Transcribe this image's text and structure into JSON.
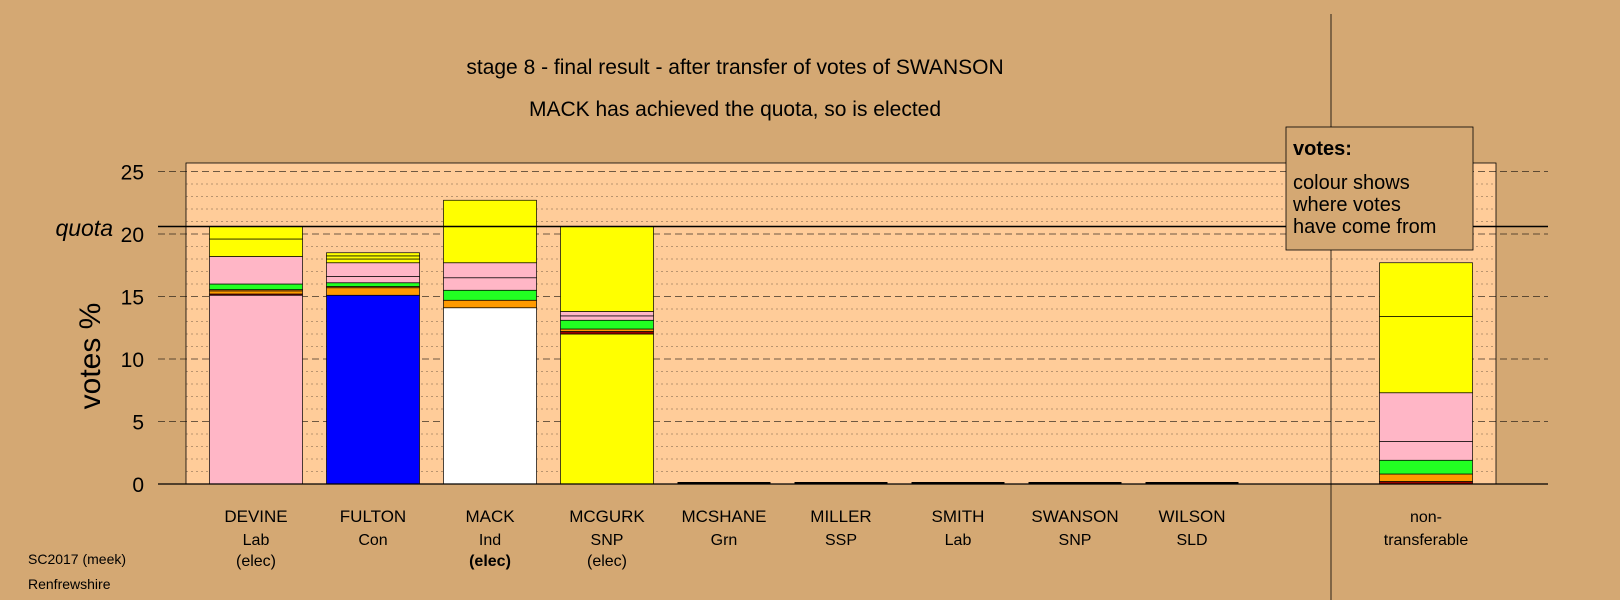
{
  "footer": {
    "line1": "SC2017 (meek)",
    "line2": "Renfrewshire"
  },
  "legend_box": {
    "heading": "votes:",
    "lines": [
      "colour shows",
      "where votes",
      "have come from"
    ]
  },
  "colors": {
    "background": "#D4A873",
    "plot_background": "#FFCC99",
    "Lab": "#FFB6C6",
    "Con": "#0000FF",
    "Ind": "#FFFFFF",
    "SNP": "#FFFF00",
    "Grn": "#22FF22",
    "SSP": "#FF8800",
    "SLD": "#FF9A00",
    "SLD_dark": "#990000"
  },
  "chart_data": {
    "type": "bar",
    "stacked": true,
    "title": "stage 8 - final result - after transfer of votes of SWANSON",
    "subtitle": "MACK has achieved the quota, so is elected",
    "xlabel": "",
    "ylabel": "votes %",
    "ylim": [
      0,
      25
    ],
    "yticks": [
      0,
      5,
      10,
      15,
      20,
      25
    ],
    "quota": 20.6,
    "quota_label": "quota",
    "grid": true,
    "categories": [
      {
        "name": "DEVINE",
        "party": "Lab",
        "status": "(elec)",
        "status_bold": false
      },
      {
        "name": "FULTON",
        "party": "Con",
        "status": "",
        "status_bold": false
      },
      {
        "name": "MACK",
        "party": "Ind",
        "status": "(elec)",
        "status_bold": true
      },
      {
        "name": "MCGURK",
        "party": "SNP",
        "status": "(elec)",
        "status_bold": false
      },
      {
        "name": "MCSHANE",
        "party": "Grn",
        "status": "",
        "status_bold": false
      },
      {
        "name": "MILLER",
        "party": "SSP",
        "status": "",
        "status_bold": false
      },
      {
        "name": "SMITH",
        "party": "Lab",
        "status": "",
        "status_bold": false
      },
      {
        "name": "SWANSON",
        "party": "SNP",
        "status": "",
        "status_bold": false
      },
      {
        "name": "WILSON",
        "party": "SLD",
        "status": "",
        "status_bold": false
      }
    ],
    "nontransferable_label": [
      "non-",
      "transferable"
    ],
    "bars": [
      {
        "segments": [
          {
            "from": "Lab",
            "value": 15.1
          },
          {
            "from": "SLD_dark",
            "value": 0.1
          },
          {
            "from": "SLD",
            "value": 0.25
          },
          {
            "from": "SSP",
            "value": 0.1
          },
          {
            "from": "Grn",
            "value": 0.45
          },
          {
            "from": "Lab",
            "value": 2.2
          },
          {
            "from": "SNP",
            "value": 1.4
          },
          {
            "from": "SNP",
            "value": 1.0
          }
        ]
      },
      {
        "segments": [
          {
            "from": "Con",
            "value": 15.1
          },
          {
            "from": "SLD",
            "value": 0.6
          },
          {
            "from": "SSP",
            "value": 0.1
          },
          {
            "from": "Grn",
            "value": 0.3
          },
          {
            "from": "Lab",
            "value": 0.5
          },
          {
            "from": "Lab",
            "value": 1.1
          },
          {
            "from": "SNP",
            "value": 0.3
          },
          {
            "from": "SNP",
            "value": 0.25
          },
          {
            "from": "SNP",
            "value": 0.25
          }
        ]
      },
      {
        "segments": [
          {
            "from": "Ind",
            "value": 14.1
          },
          {
            "from": "SLD",
            "value": 0.6
          },
          {
            "from": "Grn",
            "value": 0.8
          },
          {
            "from": "Lab",
            "value": 1.0
          },
          {
            "from": "Lab",
            "value": 1.2
          },
          {
            "from": "SNP",
            "value": 2.9
          },
          {
            "from": "SNP",
            "value": 2.1
          }
        ]
      },
      {
        "segments": [
          {
            "from": "SNP",
            "value": 12.0
          },
          {
            "from": "SLD_dark",
            "value": 0.2
          },
          {
            "from": "SLD",
            "value": 0.2
          },
          {
            "from": "Grn",
            "value": 0.7
          },
          {
            "from": "Lab",
            "value": 0.35
          },
          {
            "from": "Lab",
            "value": 0.35
          },
          {
            "from": "SNP",
            "value": 6.8
          }
        ]
      },
      {
        "segments": []
      },
      {
        "segments": []
      },
      {
        "segments": []
      },
      {
        "segments": []
      },
      {
        "segments": []
      },
      {
        "segments": [
          {
            "from": "SLD_dark",
            "value": 0.2
          },
          {
            "from": "SLD",
            "value": 0.6
          },
          {
            "from": "Grn",
            "value": 1.1
          },
          {
            "from": "Lab",
            "value": 1.5
          },
          {
            "from": "Lab",
            "value": 3.9
          },
          {
            "from": "SNP",
            "value": 6.1
          },
          {
            "from": "SNP",
            "value": 4.3
          }
        ]
      }
    ]
  }
}
